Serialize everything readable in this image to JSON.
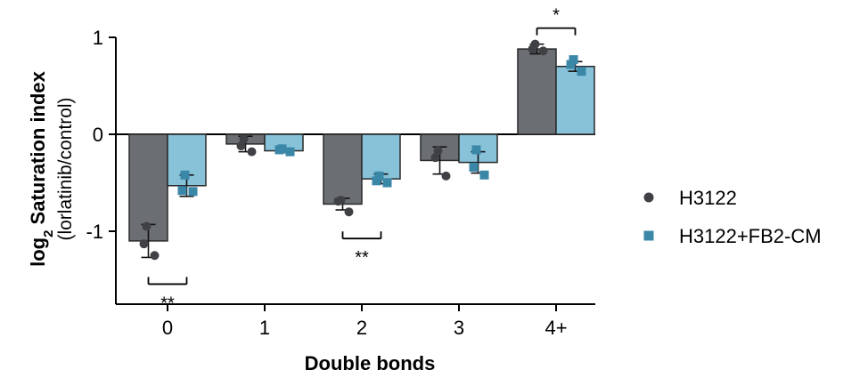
{
  "chart_data": {
    "type": "bar",
    "title": "",
    "xlabel": "Double bonds",
    "ylabel_main": "log",
    "ylabel_sub": "2",
    "ylabel_rest": " Saturation index",
    "ylabel_paren": "(lorlatinib/control)",
    "categories": [
      "0",
      "1",
      "2",
      "3",
      "4+"
    ],
    "ylim": [
      -1.6,
      1.0
    ],
    "yticks": [
      {
        "value": 1,
        "label": "1"
      },
      {
        "value": 0,
        "label": "0"
      },
      {
        "value": -1,
        "label": "-1"
      }
    ],
    "legend_position": "right",
    "series": [
      {
        "name": "H3122",
        "color": "#6b6e73",
        "point_color": "#3f4144",
        "marker": "circle",
        "values": [
          -1.1,
          -0.1,
          -0.72,
          -0.27,
          0.88
        ],
        "errors": [
          0.17,
          0.08,
          0.06,
          0.14,
          0.05
        ],
        "points": [
          [
            -0.95,
            -1.13,
            -1.25
          ],
          [
            -0.05,
            -0.12,
            -0.18
          ],
          [
            -0.68,
            -0.69,
            -0.8
          ],
          [
            -0.17,
            -0.24,
            -0.43
          ],
          [
            0.93,
            0.88,
            0.86
          ]
        ]
      },
      {
        "name": "H3122+FB2-CM",
        "color": "#87c2d9",
        "point_color": "#3a87a8",
        "marker": "square",
        "values": [
          -0.53,
          -0.17,
          -0.46,
          -0.29,
          0.7
        ],
        "errors": [
          0.11,
          0.02,
          0.05,
          0.11,
          0.05
        ],
        "points": [
          [
            -0.42,
            -0.58,
            -0.59
          ],
          [
            -0.15,
            -0.16,
            -0.18
          ],
          [
            -0.43,
            -0.48,
            -0.5
          ],
          [
            -0.16,
            -0.34,
            -0.42
          ],
          [
            0.77,
            0.72,
            0.65
          ]
        ]
      }
    ],
    "significance": [
      {
        "category_index": 0,
        "label": "**",
        "position": "below"
      },
      {
        "category_index": 2,
        "label": "**",
        "position": "below"
      },
      {
        "category_index": 4,
        "label": "*",
        "position": "above"
      }
    ]
  }
}
